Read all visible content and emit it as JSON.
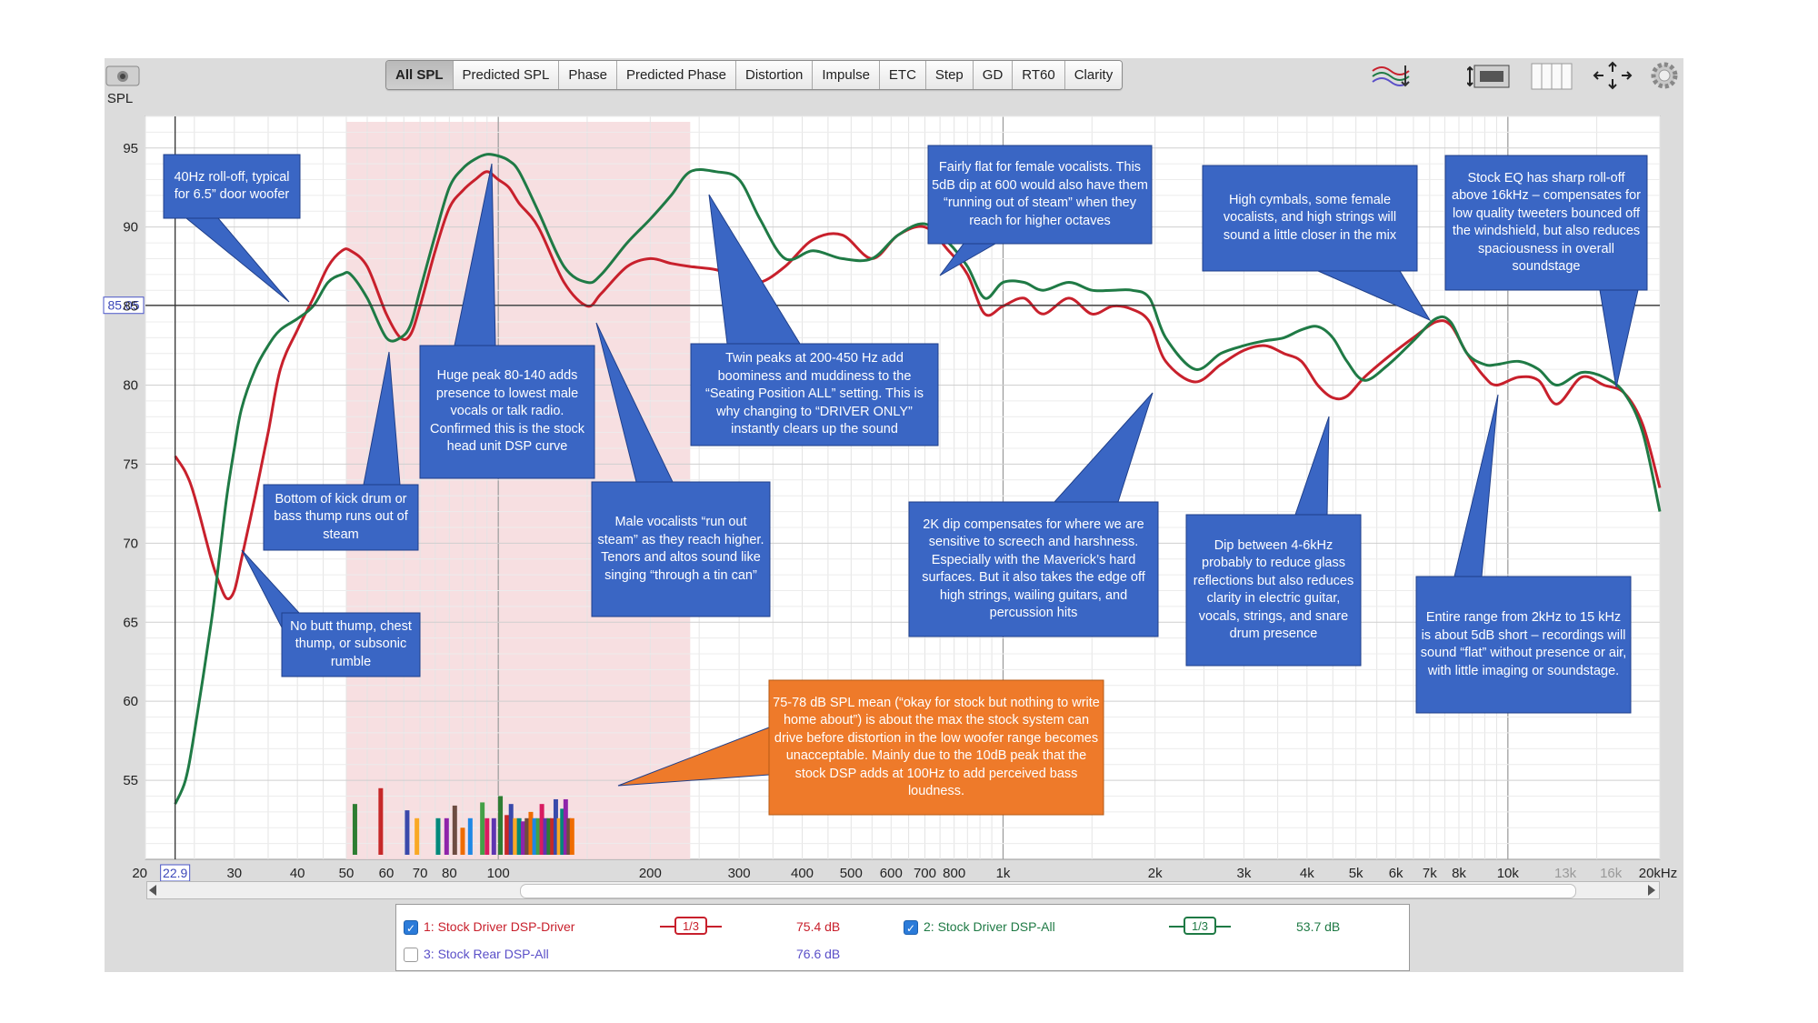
{
  "toolbar": {
    "tabs": [
      "All SPL",
      "Predicted SPL",
      "Phase",
      "Predicted Phase",
      "Distortion",
      "Impulse",
      "ETC",
      "Step",
      "GD",
      "RT60",
      "Clarity"
    ],
    "active": 0
  },
  "chart_data": {
    "type": "line",
    "ylabel": "SPL",
    "xscale": "log",
    "xlim": [
      20,
      20000
    ],
    "ylim": [
      50,
      97
    ],
    "x_ticks": [
      "20",
      "30",
      "40",
      "50",
      "60",
      "70",
      "80",
      "100",
      "200",
      "300",
      "400",
      "500",
      "600",
      "700",
      "800",
      "1k",
      "2k",
      "3k",
      "4k",
      "5k",
      "6k",
      "7k",
      "8k",
      "10k",
      "13k",
      "16k",
      "20kHz"
    ],
    "x_tick_values": [
      20,
      30,
      40,
      50,
      60,
      70,
      80,
      100,
      200,
      300,
      400,
      500,
      600,
      700,
      800,
      1000,
      2000,
      3000,
      4000,
      5000,
      6000,
      7000,
      8000,
      10000,
      13000,
      16000,
      20000
    ],
    "y_ticks": [
      55,
      60,
      65,
      70,
      75,
      80,
      85,
      90,
      95
    ],
    "cursor_x": "22.9",
    "cursor_y": "85.05",
    "cursor_x_value": 22.9,
    "cursor_y_value": 85.05,
    "highlight_band_x": [
      50,
      240
    ],
    "series": [
      {
        "name": "1: Stock Driver DSP-Driver",
        "color": "#c8202c",
        "x": [
          22.9,
          24,
          25,
          27,
          28,
          29,
          30,
          31,
          33,
          35,
          37,
          40,
          43,
          46,
          49,
          51,
          55,
          60,
          64,
          67,
          70,
          75,
          80,
          85,
          90,
          95,
          100,
          105,
          110,
          120,
          135,
          150,
          160,
          180,
          200,
          220,
          240,
          270,
          300,
          330,
          370,
          420,
          480,
          550,
          620,
          700,
          780,
          850,
          920,
          1000,
          1100,
          1200,
          1350,
          1500,
          1650,
          1800,
          1950,
          2100,
          2400,
          2700,
          3000,
          3300,
          3600,
          3900,
          4200,
          4500,
          4800,
          5200,
          5800,
          6500,
          7200,
          7700,
          8300,
          9000,
          9500,
          10500,
          11500,
          12500,
          14000,
          15500,
          17000,
          18500,
          20000
        ],
        "y": [
          75.5,
          74.5,
          73,
          69,
          67.5,
          66.5,
          67,
          69,
          73,
          77,
          81,
          83.5,
          85.5,
          87.5,
          88.5,
          88.5,
          87.5,
          84.5,
          83,
          83.2,
          85,
          88.5,
          91.2,
          92.3,
          93,
          93.5,
          93,
          92.5,
          91.5,
          90,
          86.5,
          85,
          85.8,
          87.5,
          88,
          87.7,
          87.5,
          87.3,
          86.8,
          86.5,
          87.5,
          89.2,
          89.5,
          88,
          89.5,
          90,
          88.5,
          87,
          84.5,
          85,
          85.5,
          84.5,
          85.5,
          84.5,
          85,
          84.8,
          84,
          81.5,
          80.2,
          81.3,
          82.2,
          82.5,
          82,
          81.5,
          80,
          79.2,
          79.3,
          80.5,
          81.8,
          83,
          84,
          83.8,
          82,
          80.5,
          80,
          80.5,
          80.3,
          78.8,
          80.5,
          80,
          79.5,
          77.5,
          73.5
        ]
      },
      {
        "name": "2: Stock Driver DSP-All",
        "color": "#1f7a45",
        "x": [
          22.9,
          24,
          25,
          27,
          28,
          29,
          30,
          31,
          33,
          35,
          37,
          40,
          43,
          46,
          49,
          51,
          55,
          60,
          64,
          67,
          70,
          75,
          80,
          85,
          90,
          95,
          100,
          105,
          110,
          120,
          135,
          150,
          160,
          180,
          200,
          220,
          240,
          270,
          300,
          330,
          370,
          420,
          480,
          550,
          620,
          700,
          780,
          850,
          920,
          1000,
          1100,
          1200,
          1350,
          1500,
          1650,
          1800,
          1950,
          2100,
          2400,
          2700,
          3000,
          3300,
          3600,
          3900,
          4200,
          4500,
          4800,
          5200,
          5800,
          6500,
          7200,
          7700,
          8300,
          9000,
          9500,
          10500,
          11500,
          12500,
          14000,
          15500,
          17000,
          18500,
          20000
        ],
        "y": [
          53.5,
          55,
          58,
          65,
          69,
          73,
          76,
          78.5,
          81,
          82.5,
          83.5,
          84.2,
          85,
          86.5,
          87,
          87,
          85.5,
          83,
          83,
          83.8,
          86,
          89.5,
          92.5,
          93.7,
          94.3,
          94.6,
          94.5,
          94.2,
          93.5,
          91,
          87.5,
          86.5,
          87,
          89,
          90.5,
          92,
          93.5,
          93.5,
          93,
          90.5,
          88,
          88.5,
          88,
          88,
          89.5,
          90.2,
          89,
          87.5,
          85.5,
          86.5,
          86.5,
          86,
          86.5,
          86,
          86,
          86,
          85.5,
          83,
          81,
          82,
          82.5,
          82.8,
          83,
          83.5,
          83.7,
          83,
          81.5,
          80.3,
          81.3,
          82.8,
          84.2,
          84,
          82,
          81.3,
          81.3,
          81.5,
          81,
          80,
          80.8,
          80.5,
          79.5,
          77,
          72
        ]
      }
    ],
    "distortion_bar_count": 32
  },
  "annotations": [
    {
      "text": "40Hz roll-off, typical for 6.5” door woofer",
      "color": "#3a66c4"
    },
    {
      "text": "Bottom of kick drum or bass thump runs out of steam",
      "color": "#3a66c4"
    },
    {
      "text": "No butt thump, chest thump, or subsonic rumble",
      "color": "#3a66c4"
    },
    {
      "text": "Huge peak 80-140 adds presence to lowest male vocals or talk radio. Confirmed this is the stock head unit DSP curve",
      "color": "#3a66c4"
    },
    {
      "text": "Male vocalists “run out steam” as they reach higher. Tenors and altos sound like singing “through a tin can”",
      "color": "#3a66c4"
    },
    {
      "text": "Twin peaks at 200-450 Hz add boominess and muddiness to the “Seating Position ALL” setting. This is why changing to “DRIVER ONLY” instantly clears up the sound",
      "color": "#3a66c4"
    },
    {
      "text": "Fairly flat for female vocalists. This 5dB dip at 600 would also have them “running out of steam” when they reach for higher octaves",
      "color": "#3a66c4"
    },
    {
      "text": "High cymbals, some female vocalists, and high strings will sound a little closer in the mix",
      "color": "#3a66c4"
    },
    {
      "text": "Stock EQ has sharp roll-off above 16kHz – compensates for low quality tweeters bounced off the windshield, but also reduces spaciousness in overall soundstage",
      "color": "#3a66c4"
    },
    {
      "text": "2K dip compensates for where we are sensitive to screech and harshness. Especially with the Maverick’s hard surfaces. But it also takes the edge off high strings, wailing guitars, and percussion hits",
      "color": "#3a66c4"
    },
    {
      "text": "Dip between 4-6kHz probably to reduce glass reflections but also reduces clarity in electric guitar, vocals, strings, and snare drum presence",
      "color": "#3a66c4"
    },
    {
      "text": "Entire range from 2kHz to 15 kHz is about 5dB short – recordings will sound “flat” without presence or air, with little imaging or soundstage.",
      "color": "#3a66c4"
    },
    {
      "text": "75-78 dB SPL mean (“okay for stock but nothing to write home about”) is about the max the stock system can drive before distortion in the low woofer range becomes unacceptable. Mainly due to the 10dB peak that the stock DSP adds at 100Hz to add perceived bass loudness.",
      "color": "#ee7a2a"
    }
  ],
  "legend": {
    "items": [
      {
        "label": "1: Stock Driver DSP-Driver",
        "checked": true,
        "color": "#c8202c",
        "smoothing": "1/3",
        "value": "75.4 dB"
      },
      {
        "label": "2: Stock Driver DSP-All",
        "checked": true,
        "color": "#1f7a45",
        "smoothing": "1/3",
        "value": "53.7 dB"
      },
      {
        "label": "3: Stock Rear DSP-All",
        "checked": false,
        "color": "#5a4fc8",
        "value": "76.6 dB"
      }
    ]
  }
}
